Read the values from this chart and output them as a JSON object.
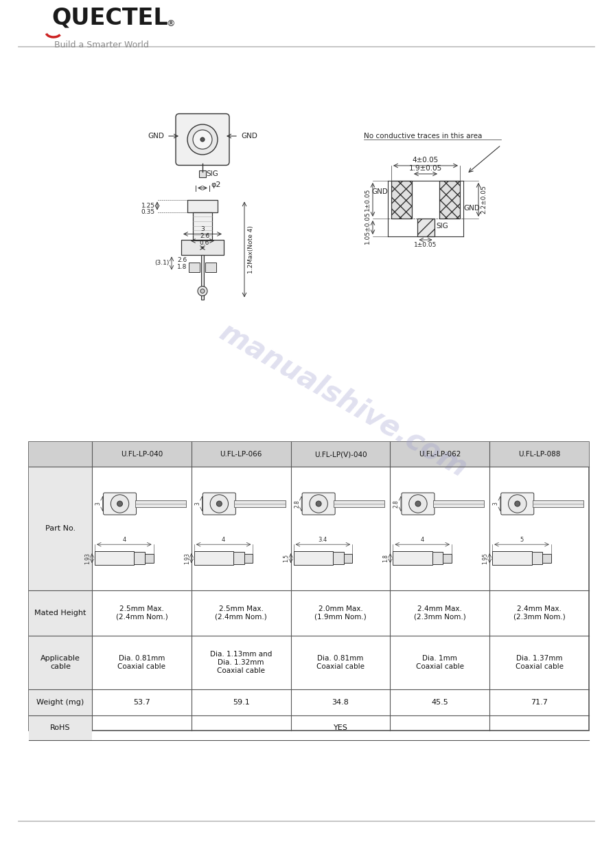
{
  "bg_color": "#ffffff",
  "logo_text": "QUECTEL",
  "logo_sub": "Build a Smarter World",
  "watermark": "manualshive.com",
  "table_headers": [
    "",
    "U.FL-LP-040",
    "U.FL-LP-066",
    "U.FL-LP(V)-040",
    "U.FL-LP-062",
    "U.FL-LP-088"
  ],
  "row_labels": [
    "Part No.",
    "Mated Height",
    "Applicable\ncable",
    "Weight (mg)",
    "RoHS"
  ],
  "mated_height": [
    "2.5mm Max.\n(2.4mm Nom.)",
    "2.5mm Max.\n(2.4mm Nom.)",
    "2.0mm Max.\n(1.9mm Nom.)",
    "2.4mm Max.\n(2.3mm Nom.)",
    "2.4mm Max.\n(2.3mm Nom.)"
  ],
  "applicable_cable": [
    "Dia. 0.81mm\nCoaxial cable",
    "Dia. 1.13mm and\nDia. 1.32mm\nCoaxial cable",
    "Dia. 0.81mm\nCoaxial cable",
    "Dia. 1mm\nCoaxial cable",
    "Dia. 1.37mm\nCoaxial cable"
  ],
  "weight": [
    "53.7",
    "59.1",
    "34.8",
    "45.5",
    "71.7"
  ],
  "rohs": "YES",
  "header_bg": "#d0d0d0",
  "row_label_bg": "#e8e8e8",
  "line_color": "#333333",
  "text_color": "#000000",
  "table_border": "#555555",
  "top_view_labels": [
    "3",
    "3",
    "2.8",
    "2.8",
    "3"
  ],
  "horiz_dim_labels": [
    "4",
    "4",
    "3.4",
    "4",
    "5"
  ],
  "vert_dim_labels": [
    "1.93",
    "1.93",
    "1.5",
    "1.8",
    "1.95"
  ]
}
